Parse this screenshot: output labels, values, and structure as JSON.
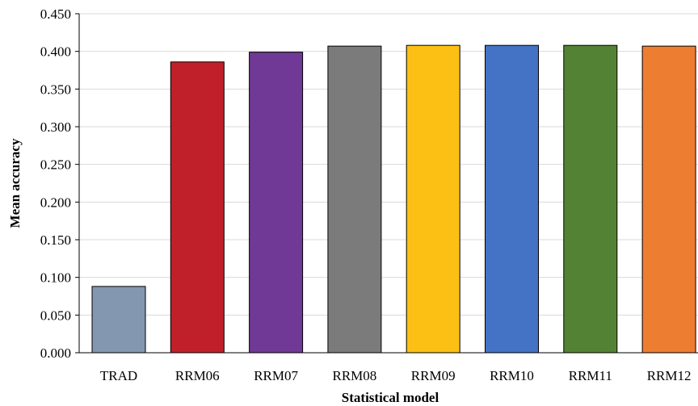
{
  "chart_data": {
    "type": "bar",
    "title": "",
    "xlabel": "Statistical model",
    "ylabel": "Mean accuracy",
    "categories": [
      "TRAD",
      "RRM06",
      "RRM07",
      "RRM08",
      "RRM09",
      "RRM10",
      "RRM11",
      "RRM12"
    ],
    "values": [
      0.088,
      0.386,
      0.399,
      0.407,
      0.408,
      0.408,
      0.408,
      0.407
    ],
    "colors": [
      "#8497b0",
      "#c0202a",
      "#6f3995",
      "#7b7b7b",
      "#fcc014",
      "#4472c4",
      "#548235",
      "#ed7d31"
    ],
    "ylim": [
      0,
      0.45
    ],
    "yticks": [
      "0.000",
      "0.050",
      "0.100",
      "0.150",
      "0.200",
      "0.250",
      "0.300",
      "0.350",
      "0.400",
      "0.450"
    ],
    "grid": true,
    "legend": "none"
  }
}
